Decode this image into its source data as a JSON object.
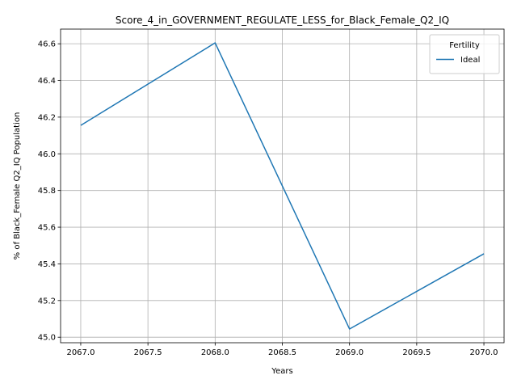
{
  "chart_data": {
    "type": "line",
    "title": "Score_4_in_GOVERNMENT_REGULATE_LESS_for_Black_Female_Q2_IQ",
    "xlabel": "Years",
    "ylabel": "% of Black_Female Q2_IQ Population",
    "x": [
      2067,
      2068,
      2069,
      2070
    ],
    "series": [
      {
        "name": "Ideal",
        "values": [
          46.155,
          46.605,
          45.045,
          45.455
        ],
        "color": "#1f77b4"
      }
    ],
    "xlim": [
      2066.85,
      2070.15
    ],
    "ylim": [
      44.97,
      46.68
    ],
    "xticks": [
      2067.0,
      2067.5,
      2068.0,
      2068.5,
      2069.0,
      2069.5,
      2070.0
    ],
    "xtick_labels": [
      "2067.0",
      "2067.5",
      "2068.0",
      "2068.5",
      "2069.0",
      "2069.5",
      "2070.0"
    ],
    "yticks": [
      45.0,
      45.2,
      45.4,
      45.6,
      45.8,
      46.0,
      46.2,
      46.4,
      46.6
    ],
    "ytick_labels": [
      "45.0",
      "45.2",
      "45.4",
      "45.6",
      "45.8",
      "46.0",
      "46.2",
      "46.4",
      "46.6"
    ],
    "grid": true,
    "legend": {
      "title": "Fertility",
      "position": "top-right"
    }
  }
}
